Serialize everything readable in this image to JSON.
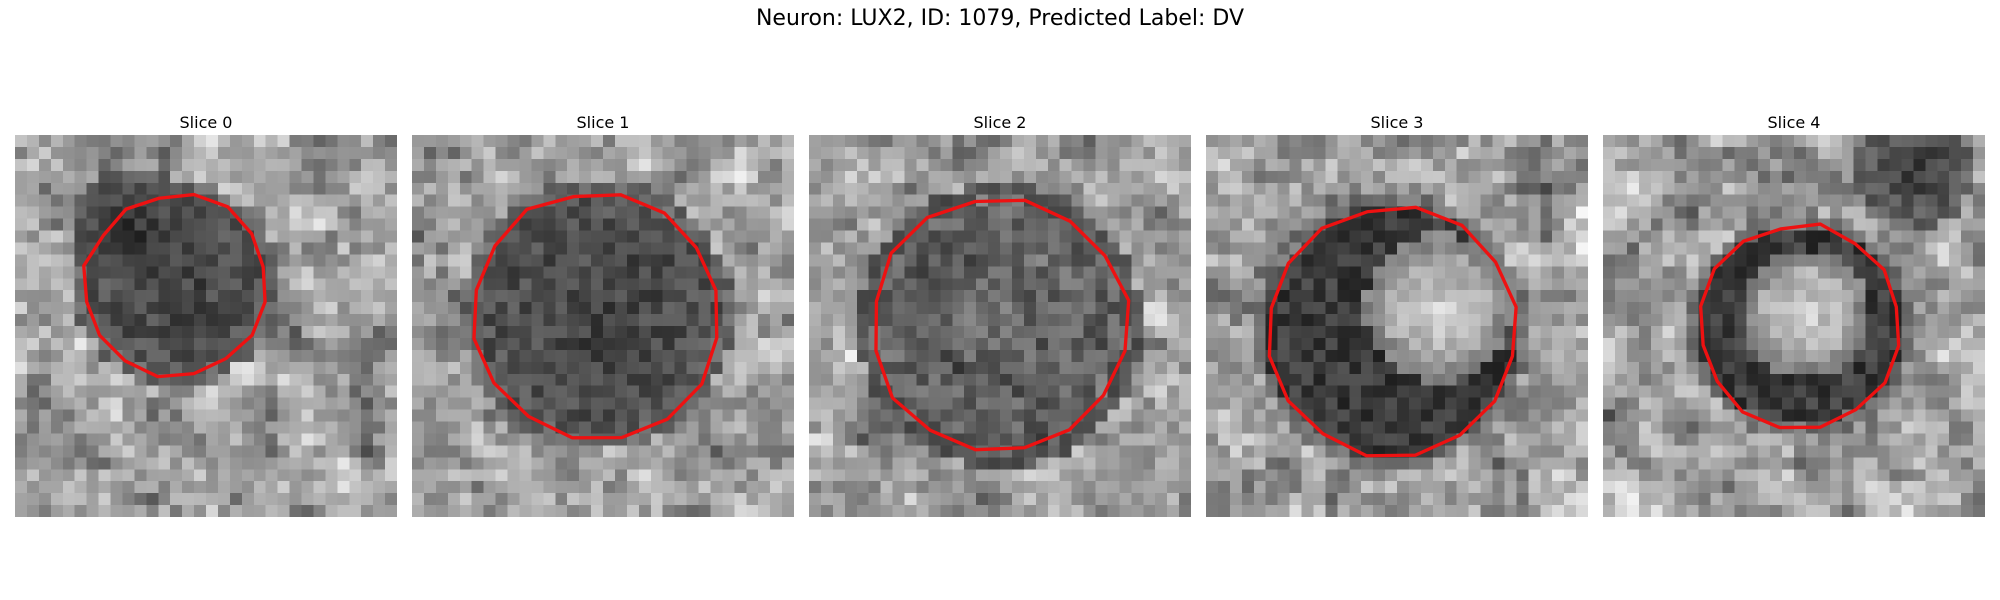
{
  "figure": {
    "title": "Neuron: LUX2, ID: 1079, Predicted Label: DV"
  },
  "colors": {
    "outline": "#ee1111",
    "background": "#ffffff"
  },
  "panels": [
    {
      "title": "Slice 0",
      "cell": "dark-cell-off-center"
    },
    {
      "title": "Slice 1",
      "cell": "large-dark-cell"
    },
    {
      "title": "Slice 2",
      "cell": "grey-textured-cell"
    },
    {
      "title": "Slice 3",
      "cell": "dark-ring-bright-core"
    },
    {
      "title": "Slice 4",
      "cell": "small-ring-bright-core"
    }
  ]
}
